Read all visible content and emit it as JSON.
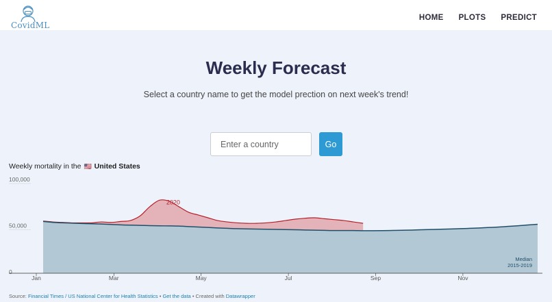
{
  "nav": {
    "logo_text": "CovidML",
    "links": [
      "HOME",
      "PLOTS",
      "PREDICT"
    ]
  },
  "hero": {
    "title": "Weekly Forecast",
    "subtitle": "Select a country name to get the model prection on next week's trend!"
  },
  "search": {
    "placeholder": "Enter a country",
    "button_label": "Go"
  },
  "chart_heading": {
    "prefix": "Weekly mortality in the",
    "flag": "🇺🇸",
    "country": "United States"
  },
  "colors": {
    "accent": "#2d9ad3",
    "series_2020": "#b4202a",
    "fill_2020": "#e4b3b9",
    "median_line": "#1f4e69",
    "median_fill": "#b3c8d5"
  },
  "chart_data": {
    "type": "area",
    "ylim": [
      0,
      100000
    ],
    "y_ticks": [
      0,
      50000,
      100000
    ],
    "y_tick_labels": [
      "0",
      "50,000",
      "100,000"
    ],
    "x_ticks": [
      "Jan",
      "Mar",
      "May",
      "Jul",
      "Sep",
      "Nov"
    ],
    "x_tick_weeks": [
      1,
      9,
      18,
      27,
      36,
      45
    ],
    "series": [
      {
        "name": "2020",
        "weeks": [
          1,
          2,
          3,
          4,
          5,
          6,
          7,
          8,
          9,
          10,
          11,
          12,
          13,
          14,
          15,
          16,
          17,
          18,
          19,
          20,
          21,
          22,
          23,
          24,
          25,
          26,
          27,
          28,
          29,
          30,
          31,
          32,
          33,
          34
        ],
        "values": [
          56500,
          55500,
          55000,
          54500,
          54500,
          54500,
          55500,
          55000,
          56000,
          57000,
          62000,
          72000,
          79000,
          78000,
          72000,
          66000,
          63000,
          60000,
          57000,
          55500,
          54500,
          54000,
          54000,
          54500,
          55500,
          57000,
          58500,
          59500,
          60000,
          59000,
          58000,
          57000,
          55500,
          54000
        ]
      },
      {
        "name": "Median\n2015-2019",
        "weeks": [
          1,
          2,
          3,
          4,
          5,
          6,
          7,
          8,
          9,
          10,
          11,
          12,
          13,
          14,
          15,
          16,
          17,
          18,
          19,
          20,
          21,
          22,
          23,
          24,
          25,
          26,
          27,
          28,
          29,
          30,
          31,
          32,
          33,
          34,
          35,
          36,
          37,
          38,
          39,
          40,
          41,
          42,
          43,
          44,
          45,
          46,
          47,
          48,
          49,
          50,
          51,
          52
        ],
        "values": [
          56000,
          55000,
          54500,
          54200,
          53800,
          53500,
          53200,
          52800,
          52300,
          52000,
          51800,
          51500,
          51300,
          51200,
          51000,
          50500,
          50000,
          49500,
          49000,
          48600,
          48200,
          48000,
          47800,
          47600,
          47400,
          47200,
          47000,
          46800,
          46600,
          46400,
          46200,
          46200,
          46200,
          46000,
          46000,
          46100,
          46300,
          46500,
          46700,
          47000,
          47300,
          47600,
          47900,
          48200,
          48600,
          49000,
          49500,
          50000,
          50700,
          51400,
          52200,
          53000
        ]
      }
    ],
    "annotations": [
      "2020",
      "Median\n2015-2019"
    ]
  },
  "source": {
    "prefix": "Source:",
    "link1": "Financial Times / US National Center for Health Statistics",
    "sep1": "•",
    "link2": "Get the data",
    "sep2": "• Created with",
    "link3": "Datawrapper"
  }
}
